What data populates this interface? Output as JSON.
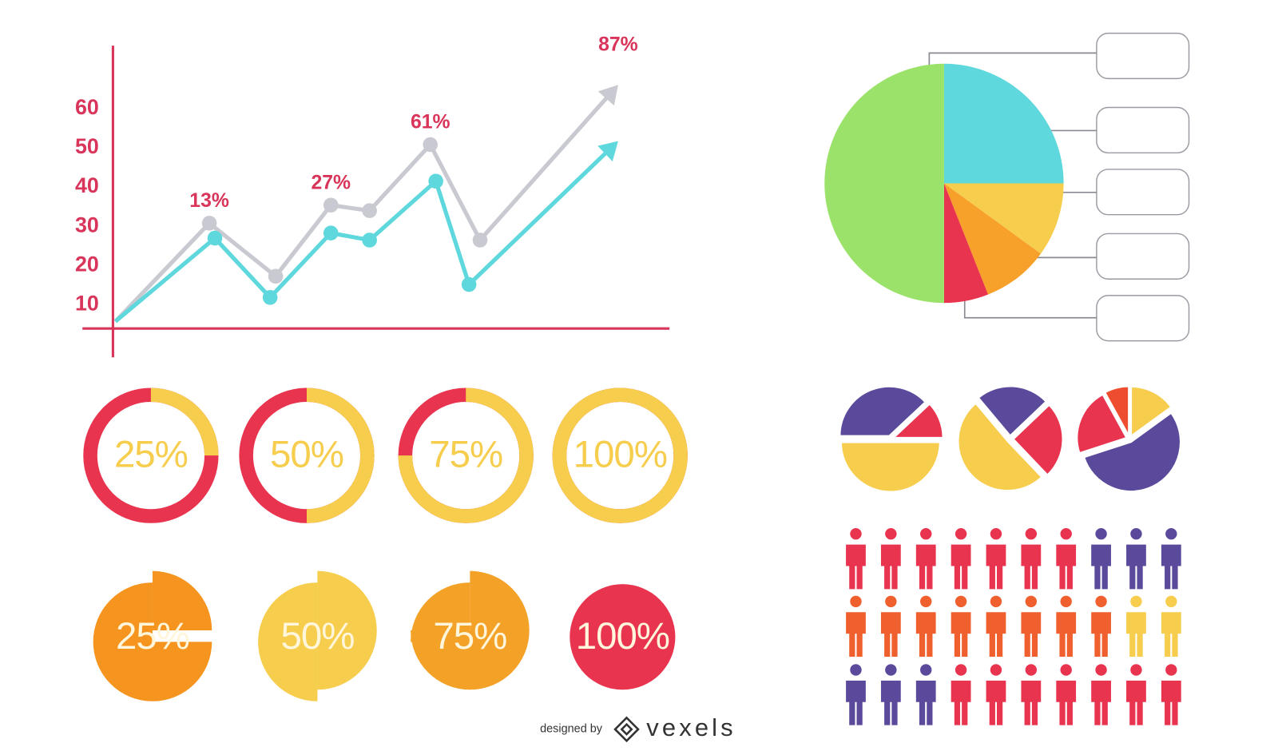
{
  "chart_data": [
    {
      "type": "line",
      "yticks": [
        10,
        20,
        30,
        40,
        50,
        60
      ],
      "ylim": [
        4,
        76
      ],
      "xlim": [
        0,
        100
      ],
      "annotations": [
        "13%",
        "27%",
        "61%",
        "87%"
      ],
      "series": [
        {
          "color": "#c9c9d1",
          "x": [
            0,
            17,
            29,
            39,
            46,
            57,
            66,
            91
          ],
          "values": [
            5.8,
            30.8,
            17.3,
            35.4,
            34,
            50.8,
            26.5,
            66
          ]
        },
        {
          "color": "#5ed8dc",
          "x": [
            0,
            18,
            28,
            39,
            46,
            58,
            64,
            91
          ],
          "values": [
            5.8,
            27,
            11.9,
            28.3,
            26.5,
            41.5,
            15.2,
            51.7
          ]
        }
      ]
    },
    {
      "type": "pie",
      "start_angle": 0,
      "values": [
        25,
        10,
        9,
        6,
        50
      ],
      "colors": [
        "#5ed8dc",
        "#f6cd4c",
        "#f7a12a",
        "#e8344f",
        "#9be26a"
      ]
    },
    {
      "type": "pie",
      "start_angle": 270,
      "exploded": true,
      "values": [
        38,
        12,
        50
      ],
      "colors": [
        "#5b4a9b",
        "#e8344f",
        "#f6cd4c"
      ]
    },
    {
      "type": "pie",
      "start_angle": 320,
      "exploded": true,
      "values": [
        24,
        25,
        51
      ],
      "colors": [
        "#5b4a9b",
        "#e8344f",
        "#f6cd4c"
      ]
    },
    {
      "type": "pie",
      "start_angle": 0,
      "exploded": true,
      "values": [
        15,
        55,
        22,
        8
      ],
      "colors": [
        "#f6cd4c",
        "#5b4a9b",
        "#e8344f",
        "#ef4d2f"
      ]
    },
    {
      "type": "ring",
      "values": [
        25,
        50,
        75,
        100
      ],
      "value_labels": [
        "25%",
        "50%",
        "75%",
        "100%"
      ],
      "color": "#f6cd4c",
      "track_color": "#e8344f"
    },
    {
      "type": "progress-pie",
      "values": [
        25,
        50,
        75,
        100
      ],
      "value_labels": [
        "25%",
        "50%",
        "75%",
        "100%"
      ],
      "colors": [
        "#f5951f",
        "#f6cd4c",
        "#f4a127",
        "#e8344f"
      ]
    },
    {
      "type": "pictogram",
      "rows": [
        [
          {
            "color": "#e8344f",
            "count": 7
          },
          {
            "color": "#5b4a9b",
            "count": 3
          }
        ],
        [
          {
            "color": "#f0602f",
            "count": 8
          },
          {
            "color": "#f6cd4c",
            "count": 2
          }
        ],
        [
          {
            "color": "#5b4a9b",
            "count": 3
          },
          {
            "color": "#e8344f",
            "count": 7
          }
        ]
      ]
    }
  ],
  "footer": {
    "designed_by": "designed by",
    "brand": "vexels"
  }
}
